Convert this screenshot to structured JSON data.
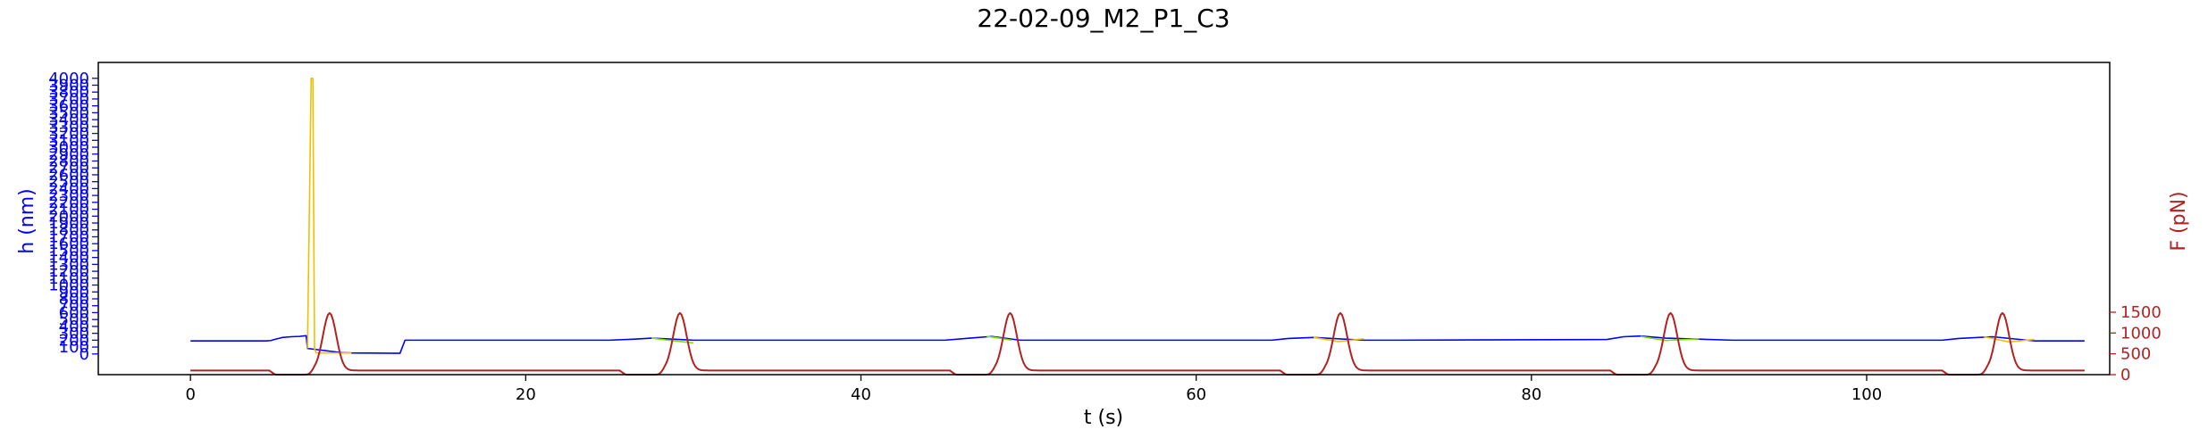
{
  "chart_data": {
    "type": "line",
    "title": "22-02-09_M2_P1_C3",
    "xlabel": "t (s)",
    "ylabel_left": "h (nm)",
    "ylabel_right": "F (pN)",
    "xlim": [
      -5.5,
      114.5
    ],
    "ylim_left": [
      -300,
      4230
    ],
    "ylim_right": [
      0,
      7500
    ],
    "x_ticks": [
      0,
      20,
      40,
      60,
      80,
      100
    ],
    "y_left_ticks": [
      0,
      100,
      200,
      300,
      400,
      500,
      600,
      700,
      800,
      900,
      1000,
      1100,
      1200,
      1300,
      1400,
      1500,
      1600,
      1700,
      1800,
      1900,
      2000,
      2100,
      2200,
      2300,
      2400,
      2500,
      2600,
      2700,
      2800,
      2900,
      3000,
      3100,
      3200,
      3300,
      3400,
      3500,
      3600,
      3700,
      3800,
      3900,
      4000
    ],
    "y_right_ticks": [
      0,
      500,
      1000,
      1500
    ],
    "grid": false,
    "colors": {
      "h_series": "#0000ff",
      "h_highlight_yellow": "#f0c000",
      "h_highlight_green": "#80e000",
      "force_series": "#b22222",
      "left_axis": "#0000ff",
      "right_axis": "#b22222",
      "text": "#000000"
    },
    "series": [
      {
        "axis": "left",
        "color_key": "h_series",
        "x": [
          0,
          4.5,
          4.8,
          5.0,
          5.5,
          6.0,
          6.5,
          6.9,
          6.98,
          9.0,
          9.6,
          12.5,
          12.8,
          25.0,
          26.5,
          27.5,
          30.0,
          45.0,
          46.5,
          47.8,
          49.5,
          64.5,
          65.5,
          67.0,
          70.0,
          72.0,
          84.5,
          85.5,
          86.5,
          88.0,
          92.0,
          104.5,
          105.5,
          107.5,
          110.0,
          113.0
        ],
        "y": [
          190,
          190,
          195,
          210,
          240,
          250,
          255,
          265,
          80,
          20,
          15,
          10,
          200,
          200,
          215,
          230,
          200,
          200,
          230,
          255,
          200,
          200,
          225,
          240,
          200,
          200,
          210,
          250,
          260,
          230,
          200,
          200,
          225,
          250,
          190,
          190
        ]
      },
      {
        "axis": "left",
        "color_key": "h_highlight_yellow",
        "x": [
          6.98,
          7.2,
          7.3,
          7.4,
          7.5,
          8.0,
          9.0,
          9.6
        ],
        "y": [
          80,
          4000,
          4000,
          80,
          15,
          15,
          15,
          15
        ]
      },
      {
        "axis": "left",
        "color_key": "h_highlight_green",
        "x": [
          27.5,
          28.5,
          30.0
        ],
        "y": [
          230,
          200,
          160
        ]
      },
      {
        "axis": "left",
        "color_key": "h_highlight_green",
        "x": [
          47.5,
          48.0,
          49.0
        ],
        "y": [
          255,
          240,
          200
        ]
      },
      {
        "axis": "left",
        "color_key": "h_highlight_yellow",
        "x": [
          67.0,
          68.5,
          70.0
        ],
        "y": [
          240,
          180,
          220
        ]
      },
      {
        "axis": "left",
        "color_key": "h_highlight_green",
        "x": [
          86.5,
          88.0,
          90.0
        ],
        "y": [
          255,
          195,
          220
        ]
      },
      {
        "axis": "left",
        "color_key": "h_highlight_yellow",
        "x": [
          107.0,
          108.5,
          110.0
        ],
        "y": [
          250,
          175,
          210
        ]
      },
      {
        "axis": "right",
        "color_key": "force_series",
        "peaks": [
          8.3,
          29.2,
          48.9,
          68.6,
          88.3,
          108.1
        ],
        "baseline": 100,
        "peak_value": 1480
      }
    ]
  }
}
